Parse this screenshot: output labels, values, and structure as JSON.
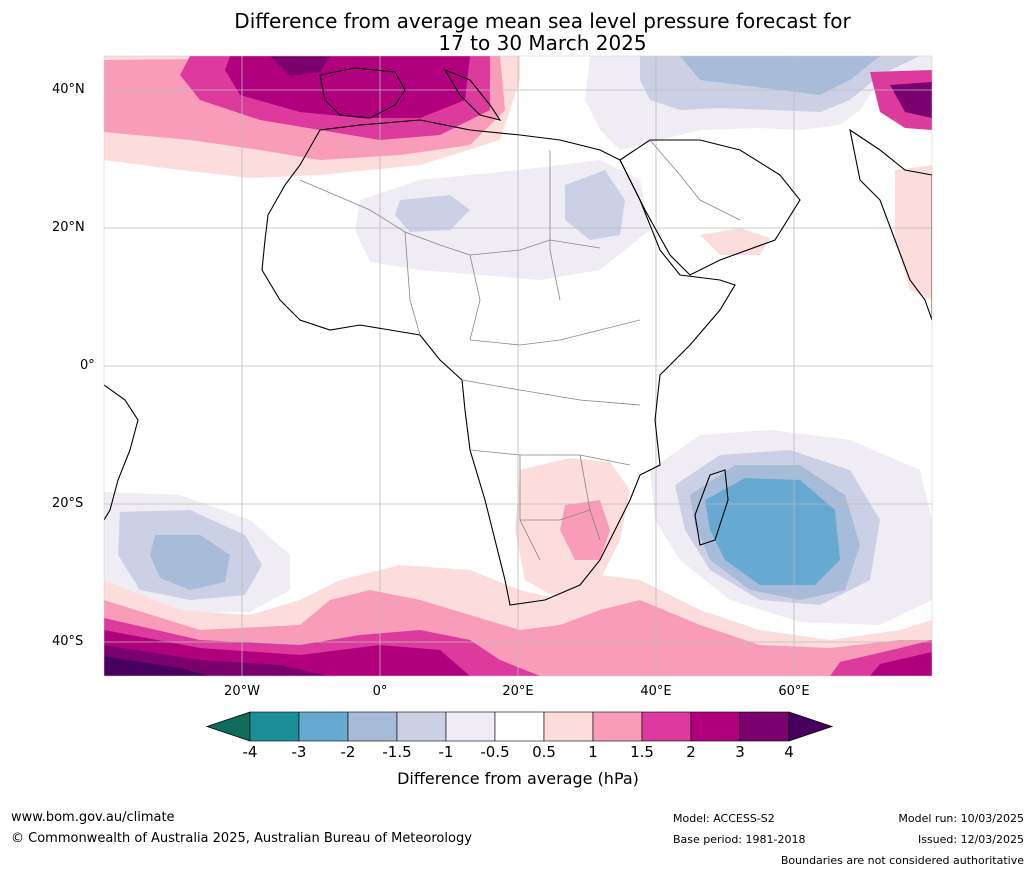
{
  "title_line1": "Difference from average mean sea level pressure forecast for",
  "title_line2": "17 to 30 March 2025",
  "lat_labels": [
    "40°N",
    "20°N",
    "0°",
    "20°S",
    "40°S"
  ],
  "lon_labels": [
    "20°W",
    "0°",
    "20°E",
    "40°E",
    "60°E"
  ],
  "colorbar": {
    "ticks": [
      "-4",
      "-3",
      "-2",
      "-1.5",
      "-1",
      "-0.5",
      "0.5",
      "1",
      "1.5",
      "2",
      "3",
      "4"
    ],
    "colors": [
      "#0f6b5b",
      "#1b8e98",
      "#66aad2",
      "#a7bcd9",
      "#ccd0e5",
      "#efecf4",
      "#ffffff",
      "#fddcdc",
      "#f89cb9",
      "#dc3a9c",
      "#b0007e",
      "#7a006f",
      "#48005e"
    ],
    "label": "Difference from average (hPa)"
  },
  "footer": {
    "website": "www.bom.gov.au/climate",
    "copyright": "© Commonwealth of Australia 2025, Australian Bureau of Meteorology",
    "model": "Model: ACCESS-S2",
    "base_period": "Base period: 1981-2018",
    "model_run": "Model run: 10/03/2025",
    "issued": "Issued: 12/03/2025",
    "disclaimer": "Boundaries are not considered authoritative"
  }
}
